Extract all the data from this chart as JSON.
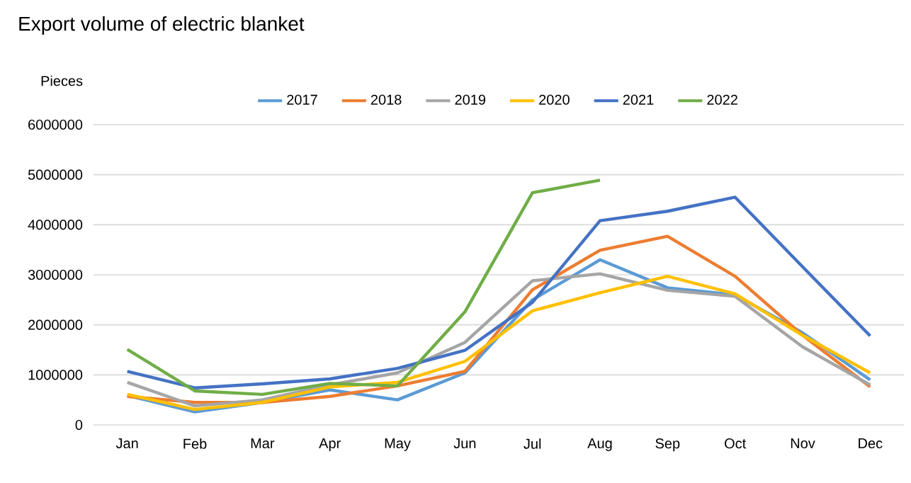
{
  "chart_data": {
    "type": "line",
    "title": "Export volume of electric blanket",
    "ylabel": "Pieces",
    "categories": [
      "Jan",
      "Feb",
      "Mar",
      "Apr",
      "May",
      "Jun",
      "Jul",
      "Aug",
      "Sep",
      "Oct",
      "Nov",
      "Dec"
    ],
    "series": [
      {
        "name": "2017",
        "color": "#5b9bd5",
        "values": [
          590000,
          260000,
          450000,
          700000,
          500000,
          1040000,
          2500000,
          3300000,
          2740000,
          2600000,
          1840000,
          900000
        ]
      },
      {
        "name": "2018",
        "color": "#ed7d31",
        "values": [
          570000,
          450000,
          450000,
          570000,
          780000,
          1070000,
          2700000,
          3490000,
          3770000,
          2970000,
          1790000,
          760000
        ]
      },
      {
        "name": "2019",
        "color": "#a5a5a5",
        "values": [
          850000,
          380000,
          500000,
          800000,
          1040000,
          1650000,
          2880000,
          3020000,
          2690000,
          2570000,
          1560000,
          800000
        ]
      },
      {
        "name": "2020",
        "color": "#ffc000",
        "values": [
          610000,
          310000,
          450000,
          760000,
          850000,
          1270000,
          2280000,
          2640000,
          2970000,
          2620000,
          1790000,
          1040000
        ]
      },
      {
        "name": "2021",
        "color": "#4472c4",
        "values": [
          1070000,
          740000,
          820000,
          920000,
          1130000,
          1490000,
          2450000,
          4080000,
          4270000,
          4550000,
          3160000,
          1780000
        ]
      },
      {
        "name": "2022",
        "color": "#70ad47",
        "values": [
          1510000,
          680000,
          610000,
          830000,
          780000,
          2260000,
          4640000,
          4890000,
          null,
          null,
          null,
          null
        ]
      }
    ],
    "ylim": [
      0,
      6000000
    ],
    "yticks": [
      0,
      1000000,
      2000000,
      3000000,
      4000000,
      5000000,
      6000000
    ],
    "grid": "y",
    "legend": "top",
    "marker": "none",
    "line_style": "solid"
  }
}
